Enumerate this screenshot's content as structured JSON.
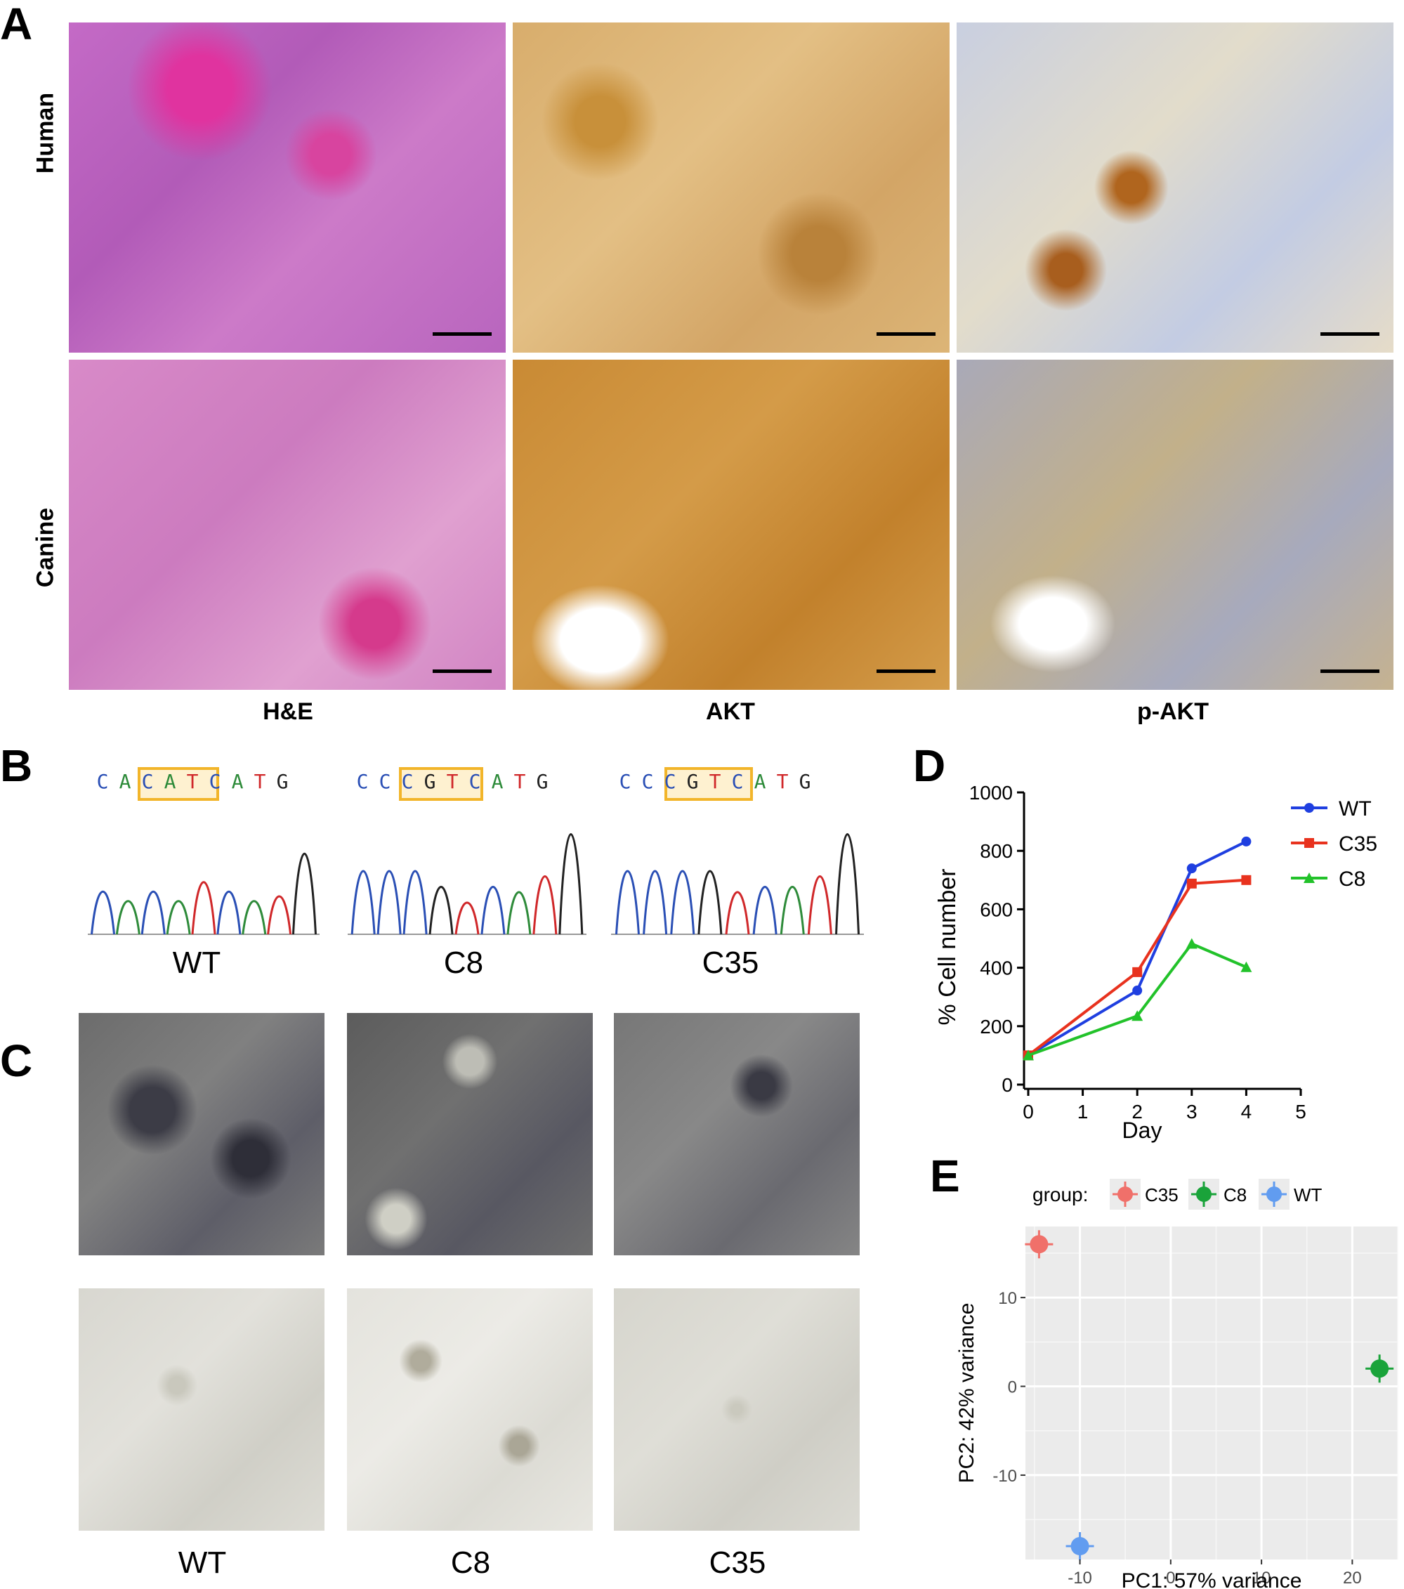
{
  "panels": {
    "A": "A",
    "B": "B",
    "C": "C",
    "D": "D",
    "E": "E"
  },
  "panel_a": {
    "row_labels": [
      "Human",
      "Canine"
    ],
    "col_labels": [
      "H&E",
      "AKT",
      "p-AKT"
    ]
  },
  "panel_b": {
    "sequences": [
      {
        "label": "WT",
        "bases": [
          "C",
          "A",
          "C",
          "A",
          "T",
          "C",
          "A",
          "T",
          "G"
        ]
      },
      {
        "label": "C8",
        "bases": [
          "C",
          "C",
          "C",
          "G",
          "T",
          "C",
          "A",
          "T",
          "G"
        ]
      },
      {
        "label": "C35",
        "bases": [
          "C",
          "C",
          "C",
          "G",
          "T",
          "C",
          "A",
          "T",
          "G"
        ]
      }
    ],
    "base_colors": {
      "A": "#2e8b3a",
      "C": "#2a4fb5",
      "G": "#222222",
      "T": "#d0282a"
    },
    "highlight_color": "#f2b52a"
  },
  "panel_c": {
    "labels": [
      "WT",
      "C8",
      "C35"
    ]
  },
  "chart_data": [
    {
      "type": "line",
      "x": [
        0,
        2,
        3,
        4
      ],
      "series": [
        {
          "name": "WT",
          "color": "#1f3fe0",
          "marker": "circle",
          "values": [
            100,
            322,
            740,
            832
          ]
        },
        {
          "name": "C35",
          "color": "#e8321e",
          "marker": "square",
          "values": [
            100,
            385,
            688,
            700
          ]
        },
        {
          "name": "C8",
          "color": "#22c22a",
          "marker": "triangle",
          "values": [
            100,
            235,
            482,
            402
          ]
        }
      ],
      "xlabel": "Day",
      "ylabel": "% Cell number",
      "xlim": [
        0,
        5
      ],
      "ylim": [
        0,
        1000
      ],
      "xticks": [
        "0",
        "1",
        "2",
        "3",
        "4",
        "5"
      ],
      "yticks": [
        "0",
        "200",
        "400",
        "600",
        "800",
        "1000"
      ],
      "legend": "top-right",
      "grid": false
    },
    {
      "type": "scatter",
      "legend_title": "group:",
      "series": [
        {
          "name": "C35",
          "color": "#f0706a",
          "x": -14.5,
          "y": 16
        },
        {
          "name": "C8",
          "color": "#1aa33a",
          "x": 23,
          "y": 2
        },
        {
          "name": "WT",
          "color": "#619cf0",
          "x": -10,
          "y": -18
        }
      ],
      "xlabel": "PC1: 57% variance",
      "ylabel": "PC2: 42% variance",
      "xlim": [
        -16,
        25
      ],
      "ylim": [
        -19.5,
        18
      ],
      "xticks": [
        "-10",
        "0",
        "10",
        "20"
      ],
      "yticks": [
        "-10",
        "0",
        "10"
      ],
      "legend": "top",
      "grid": true,
      "background": "#ebebeb"
    }
  ]
}
